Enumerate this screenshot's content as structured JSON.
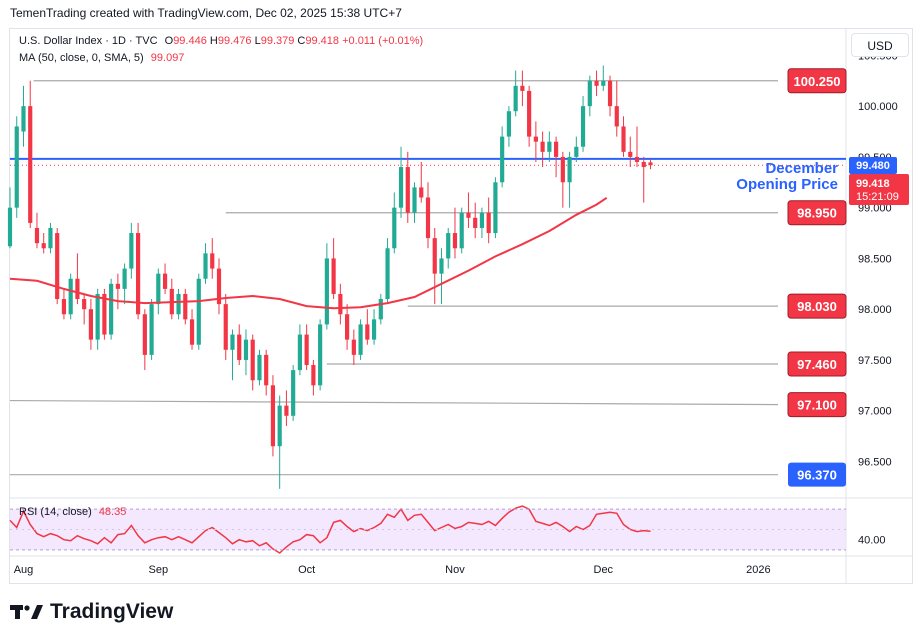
{
  "header": {
    "attribution": "TemenTrading created with TradingView.com, Dec 02, 2025 15:38 UTC+7"
  },
  "legend": {
    "symbol": "U.S. Dollar Index · 1D · TVC",
    "open_label": "O",
    "open": "99.446",
    "high_label": "H",
    "high": "99.476",
    "low_label": "L",
    "low": "99.379",
    "close_label": "C",
    "close": "99.418",
    "change": "+0.011 (+0.01%)",
    "ma_label": "MA (50, close, 0, SMA, 5)",
    "ma_value": "99.097",
    "rsi_label": "RSI (14, close)",
    "rsi_value": "48.35"
  },
  "currency_button": "USD",
  "logo_text": "TradingView",
  "annotation": {
    "line1": "December",
    "line2": "Opening Price"
  },
  "price_badges": {
    "level_price": "99.480",
    "last_price": "99.418",
    "countdown": "15:21:09"
  },
  "colors": {
    "up": "#22ab94",
    "down": "#f23645",
    "ma": "#f23645",
    "level_red": "#f23645",
    "level_blue": "#2962ff",
    "rsi_line": "#f23645",
    "rsi_band": "#f3e8fd"
  },
  "chart_data": {
    "type": "candlestick",
    "title": "U.S. Dollar Index · 1D · TVC",
    "y_axis": {
      "ticks": [
        "100.500",
        "100.000",
        "99.500",
        "99.000",
        "98.500",
        "98.000",
        "97.500",
        "97.000",
        "96.500"
      ],
      "tick_values": [
        100.5,
        100.0,
        99.5,
        99.0,
        98.5,
        98.0,
        97.5,
        97.0,
        96.5
      ],
      "range": [
        96.15,
        100.75
      ]
    },
    "x_axis": {
      "labels": [
        "Aug",
        "Sep",
        "Oct",
        "Nov",
        "Dec",
        "2026"
      ],
      "label_days": [
        8,
        28,
        50,
        72,
        94,
        117
      ],
      "range_days": [
        6,
        130
      ]
    },
    "levels": [
      {
        "label": "100.250",
        "price": 100.25,
        "start_day": 9.5,
        "color": "red"
      },
      {
        "label": "98.950",
        "price": 98.95,
        "start_day": 38,
        "color": "red"
      },
      {
        "label": "98.030",
        "price": 98.03,
        "start_day": 65,
        "color": "red"
      },
      {
        "label": "97.460",
        "price": 97.46,
        "start_day": 53,
        "color": "red"
      },
      {
        "label": "97.100",
        "price": 97.1,
        "start_day": 6,
        "end_price": 97.06,
        "color": "red"
      },
      {
        "label": "96.370",
        "price": 96.37,
        "start_day": 6,
        "color": "blue"
      }
    ],
    "december_open": 99.48,
    "candles": [
      {
        "o": 98.62,
        "h": 99.2,
        "l": 98.6,
        "c": 99.0
      },
      {
        "o": 99.0,
        "h": 99.9,
        "l": 98.9,
        "c": 99.8
      },
      {
        "o": 99.75,
        "h": 100.2,
        "l": 99.6,
        "c": 100.0
      },
      {
        "o": 100.0,
        "h": 100.25,
        "l": 98.8,
        "c": 98.85
      },
      {
        "o": 98.8,
        "h": 98.95,
        "l": 98.6,
        "c": 98.65
      },
      {
        "o": 98.65,
        "h": 98.75,
        "l": 98.55,
        "c": 98.6
      },
      {
        "o": 98.6,
        "h": 98.85,
        "l": 98.55,
        "c": 98.8
      },
      {
        "o": 98.75,
        "h": 98.8,
        "l": 98.05,
        "c": 98.1
      },
      {
        "o": 98.1,
        "h": 98.2,
        "l": 97.9,
        "c": 97.95
      },
      {
        "o": 97.95,
        "h": 98.35,
        "l": 97.9,
        "c": 98.3
      },
      {
        "o": 98.3,
        "h": 98.55,
        "l": 98.05,
        "c": 98.1
      },
      {
        "o": 98.1,
        "h": 98.15,
        "l": 97.85,
        "c": 98.0
      },
      {
        "o": 98.0,
        "h": 98.1,
        "l": 97.6,
        "c": 97.7
      },
      {
        "o": 97.7,
        "h": 98.2,
        "l": 97.6,
        "c": 98.15
      },
      {
        "o": 98.15,
        "h": 98.2,
        "l": 97.7,
        "c": 97.75
      },
      {
        "o": 97.75,
        "h": 98.3,
        "l": 97.7,
        "c": 98.25
      },
      {
        "o": 98.25,
        "h": 98.35,
        "l": 98.0,
        "c": 98.2
      },
      {
        "o": 98.2,
        "h": 98.45,
        "l": 98.05,
        "c": 98.4
      },
      {
        "o": 98.4,
        "h": 98.85,
        "l": 98.3,
        "c": 98.75
      },
      {
        "o": 98.75,
        "h": 98.85,
        "l": 97.9,
        "c": 97.95
      },
      {
        "o": 97.95,
        "h": 98.0,
        "l": 97.4,
        "c": 97.55
      },
      {
        "o": 97.55,
        "h": 98.1,
        "l": 97.5,
        "c": 98.05
      },
      {
        "o": 98.05,
        "h": 98.4,
        "l": 97.95,
        "c": 98.35
      },
      {
        "o": 98.35,
        "h": 98.45,
        "l": 98.15,
        "c": 98.2
      },
      {
        "o": 98.2,
        "h": 98.3,
        "l": 97.9,
        "c": 97.95
      },
      {
        "o": 97.95,
        "h": 98.2,
        "l": 97.9,
        "c": 98.15
      },
      {
        "o": 98.15,
        "h": 98.2,
        "l": 97.85,
        "c": 97.9
      },
      {
        "o": 97.9,
        "h": 98.0,
        "l": 97.6,
        "c": 97.65
      },
      {
        "o": 97.65,
        "h": 98.35,
        "l": 97.6,
        "c": 98.3
      },
      {
        "o": 98.3,
        "h": 98.65,
        "l": 98.25,
        "c": 98.55
      },
      {
        "o": 98.55,
        "h": 98.7,
        "l": 98.3,
        "c": 98.4
      },
      {
        "o": 98.4,
        "h": 98.5,
        "l": 97.95,
        "c": 98.05
      },
      {
        "o": 98.05,
        "h": 98.15,
        "l": 97.5,
        "c": 97.6
      },
      {
        "o": 97.6,
        "h": 97.8,
        "l": 97.3,
        "c": 97.75
      },
      {
        "o": 97.75,
        "h": 97.85,
        "l": 97.45,
        "c": 97.5
      },
      {
        "o": 97.5,
        "h": 97.8,
        "l": 97.35,
        "c": 97.7
      },
      {
        "o": 97.7,
        "h": 97.75,
        "l": 97.2,
        "c": 97.3
      },
      {
        "o": 97.3,
        "h": 97.6,
        "l": 97.25,
        "c": 97.55
      },
      {
        "o": 97.55,
        "h": 97.6,
        "l": 97.15,
        "c": 97.25
      },
      {
        "o": 97.25,
        "h": 97.35,
        "l": 96.55,
        "c": 96.65
      },
      {
        "o": 96.65,
        "h": 97.15,
        "l": 96.23,
        "c": 97.05
      },
      {
        "o": 97.05,
        "h": 97.2,
        "l": 96.85,
        "c": 96.95
      },
      {
        "o": 96.95,
        "h": 97.45,
        "l": 96.9,
        "c": 97.4
      },
      {
        "o": 97.4,
        "h": 97.85,
        "l": 97.35,
        "c": 97.75
      },
      {
        "o": 97.75,
        "h": 97.85,
        "l": 97.4,
        "c": 97.45
      },
      {
        "o": 97.45,
        "h": 97.5,
        "l": 97.15,
        "c": 97.25
      },
      {
        "o": 97.25,
        "h": 97.9,
        "l": 97.2,
        "c": 97.85
      },
      {
        "o": 97.85,
        "h": 98.65,
        "l": 97.8,
        "c": 98.5
      },
      {
        "o": 98.5,
        "h": 98.7,
        "l": 98.1,
        "c": 98.15
      },
      {
        "o": 98.15,
        "h": 98.25,
        "l": 97.85,
        "c": 97.95
      },
      {
        "o": 97.95,
        "h": 98.05,
        "l": 97.6,
        "c": 97.7
      },
      {
        "o": 97.7,
        "h": 97.8,
        "l": 97.45,
        "c": 97.55
      },
      {
        "o": 97.55,
        "h": 97.9,
        "l": 97.5,
        "c": 97.85
      },
      {
        "o": 97.85,
        "h": 98.0,
        "l": 97.65,
        "c": 97.7
      },
      {
        "o": 97.7,
        "h": 98.0,
        "l": 97.65,
        "c": 97.9
      },
      {
        "o": 97.9,
        "h": 98.15,
        "l": 97.85,
        "c": 98.1
      },
      {
        "o": 98.1,
        "h": 98.7,
        "l": 98.05,
        "c": 98.6
      },
      {
        "o": 98.6,
        "h": 99.15,
        "l": 98.55,
        "c": 99.0
      },
      {
        "o": 99.0,
        "h": 99.6,
        "l": 98.9,
        "c": 99.4
      },
      {
        "o": 99.4,
        "h": 99.55,
        "l": 98.85,
        "c": 98.95
      },
      {
        "o": 98.95,
        "h": 99.25,
        "l": 98.85,
        "c": 99.2
      },
      {
        "o": 99.2,
        "h": 99.45,
        "l": 99.05,
        "c": 99.1
      },
      {
        "o": 99.1,
        "h": 99.25,
        "l": 98.6,
        "c": 98.7
      },
      {
        "o": 98.7,
        "h": 98.8,
        "l": 98.05,
        "c": 98.35
      },
      {
        "o": 98.35,
        "h": 98.6,
        "l": 98.05,
        "c": 98.5
      },
      {
        "o": 98.5,
        "h": 98.8,
        "l": 98.4,
        "c": 98.75
      },
      {
        "o": 98.75,
        "h": 99.0,
        "l": 98.5,
        "c": 98.6
      },
      {
        "o": 98.6,
        "h": 99.0,
        "l": 98.55,
        "c": 98.95
      },
      {
        "o": 98.95,
        "h": 99.15,
        "l": 98.8,
        "c": 98.9
      },
      {
        "o": 98.9,
        "h": 99.05,
        "l": 98.7,
        "c": 98.8
      },
      {
        "o": 98.8,
        "h": 99.0,
        "l": 98.7,
        "c": 98.95
      },
      {
        "o": 98.95,
        "h": 99.1,
        "l": 98.65,
        "c": 98.75
      },
      {
        "o": 98.75,
        "h": 99.3,
        "l": 98.7,
        "c": 99.25
      },
      {
        "o": 99.25,
        "h": 99.8,
        "l": 99.2,
        "c": 99.7
      },
      {
        "o": 99.7,
        "h": 100.0,
        "l": 99.6,
        "c": 99.95
      },
      {
        "o": 99.95,
        "h": 100.35,
        "l": 99.9,
        "c": 100.2
      },
      {
        "o": 100.2,
        "h": 100.35,
        "l": 100.0,
        "c": 100.15
      },
      {
        "o": 100.15,
        "h": 100.2,
        "l": 99.6,
        "c": 99.7
      },
      {
        "o": 99.7,
        "h": 99.85,
        "l": 99.45,
        "c": 99.65
      },
      {
        "o": 99.65,
        "h": 99.75,
        "l": 99.4,
        "c": 99.55
      },
      {
        "o": 99.55,
        "h": 99.75,
        "l": 99.45,
        "c": 99.65
      },
      {
        "o": 99.65,
        "h": 99.7,
        "l": 99.3,
        "c": 99.5
      },
      {
        "o": 99.5,
        "h": 99.55,
        "l": 99.0,
        "c": 99.25
      },
      {
        "o": 99.25,
        "h": 99.55,
        "l": 99.0,
        "c": 99.5
      },
      {
        "o": 99.5,
        "h": 99.7,
        "l": 99.45,
        "c": 99.6
      },
      {
        "o": 99.6,
        "h": 100.1,
        "l": 99.55,
        "c": 100.0
      },
      {
        "o": 100.0,
        "h": 100.3,
        "l": 99.9,
        "c": 100.25
      },
      {
        "o": 100.25,
        "h": 100.35,
        "l": 100.1,
        "c": 100.2
      },
      {
        "o": 100.2,
        "h": 100.4,
        "l": 100.15,
        "c": 100.25
      },
      {
        "o": 100.25,
        "h": 100.3,
        "l": 99.9,
        "c": 100.0
      },
      {
        "o": 100.0,
        "h": 100.25,
        "l": 99.7,
        "c": 99.8
      },
      {
        "o": 99.8,
        "h": 99.9,
        "l": 99.5,
        "c": 99.55
      },
      {
        "o": 99.55,
        "h": 99.7,
        "l": 99.4,
        "c": 99.5
      },
      {
        "o": 99.5,
        "h": 99.8,
        "l": 99.4,
        "c": 99.45
      },
      {
        "o": 99.45,
        "h": 99.5,
        "l": 99.05,
        "c": 99.4
      },
      {
        "o": 99.446,
        "h": 99.476,
        "l": 99.379,
        "c": 99.418
      }
    ],
    "ma50": [
      [
        6,
        98.3
      ],
      [
        10,
        98.28
      ],
      [
        14,
        98.2
      ],
      [
        18,
        98.13
      ],
      [
        22,
        98.08
      ],
      [
        26,
        98.06
      ],
      [
        30,
        98.07
      ],
      [
        34,
        98.08
      ],
      [
        38,
        98.11
      ],
      [
        42,
        98.13
      ],
      [
        46,
        98.1
      ],
      [
        50,
        98.03
      ],
      [
        54,
        98.01
      ],
      [
        58,
        98.02
      ],
      [
        62,
        98.06
      ],
      [
        66,
        98.12
      ],
      [
        70,
        98.25
      ],
      [
        74,
        98.38
      ],
      [
        78,
        98.52
      ],
      [
        82,
        98.64
      ],
      [
        86,
        98.77
      ],
      [
        90,
        98.93
      ],
      [
        93,
        99.03
      ],
      [
        94.5,
        99.097
      ]
    ],
    "rsi": {
      "label": "RSI (14, close)",
      "value": 48.35,
      "tick": "40.00",
      "tick_value": 40,
      "band": [
        30,
        70
      ],
      "range": [
        25,
        80
      ],
      "values": [
        59,
        52,
        68,
        55,
        46,
        43,
        46,
        44,
        40,
        39,
        44,
        41,
        39,
        36,
        42,
        37,
        45,
        46,
        54,
        44,
        37,
        40,
        42,
        43,
        40,
        43,
        40,
        37,
        43,
        49,
        52,
        47,
        42,
        36,
        40,
        38,
        39,
        34,
        37,
        31,
        27,
        33,
        38,
        40,
        45,
        44,
        37,
        42,
        57,
        59,
        53,
        48,
        51,
        49,
        52,
        56,
        65,
        62,
        70,
        59,
        64,
        65,
        57,
        49,
        52,
        55,
        51,
        53,
        57,
        56,
        55,
        58,
        54,
        61,
        67,
        71,
        73,
        70,
        58,
        56,
        54,
        57,
        53,
        48,
        53,
        50,
        54,
        65,
        66,
        67,
        66,
        55,
        50,
        48,
        49,
        48.35
      ]
    }
  }
}
